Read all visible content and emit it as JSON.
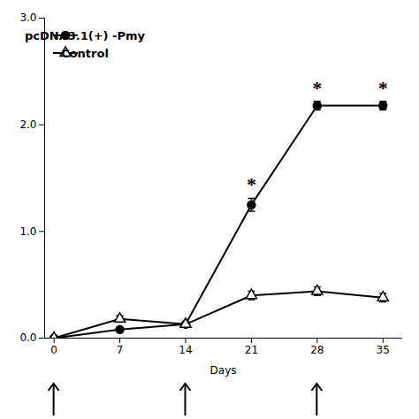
{
  "chart_data": {
    "type": "line",
    "x": [
      0,
      7,
      14,
      21,
      28,
      35
    ],
    "x_label": "Days",
    "series": [
      {
        "name": "pcDNA3.1(+) -Pmy",
        "color": "#000000",
        "marker": "circle",
        "values": [
          0.0,
          0.08,
          0.13,
          1.25,
          2.18,
          2.18
        ],
        "errors": [
          0.01,
          0.02,
          0.02,
          0.06,
          0.04,
          0.04
        ]
      },
      {
        "name": "Control",
        "color": "#000000",
        "marker": "triangle-open",
        "values": [
          0.0,
          0.18,
          0.13,
          0.4,
          0.44,
          0.38
        ],
        "errors": [
          0.01,
          0.03,
          0.02,
          0.04,
          0.04,
          0.04
        ]
      }
    ],
    "annotations": [
      {
        "x": 21,
        "y": 1.38,
        "text": "*"
      },
      {
        "x": 28,
        "y": 2.28,
        "text": "*"
      },
      {
        "x": 35,
        "y": 2.28,
        "text": "*"
      }
    ],
    "arrows_x": [
      0,
      14,
      28
    ],
    "xlim": [
      -1,
      37
    ],
    "xticks": [
      0,
      7,
      14,
      21,
      28,
      35
    ],
    "ylim": [
      0,
      3
    ],
    "yticks": [
      0,
      1,
      2,
      3
    ],
    "grid": false,
    "legend": "upper left"
  }
}
